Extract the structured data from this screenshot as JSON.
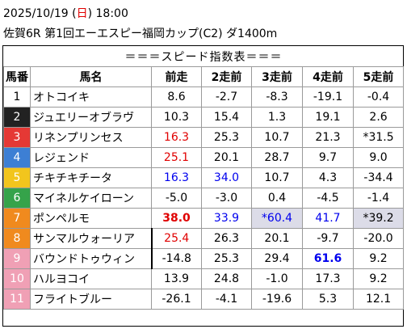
{
  "header": {
    "date_prefix": "2025/10/19 (",
    "weekday": "日",
    "date_suffix": ") 18:00",
    "race": "佐賀6R 第1回エーエスピー福岡カップ(C2) ダ1400m"
  },
  "table_caption": "＝＝＝スピード指数表＝＝＝",
  "columns": [
    "馬番",
    "馬名",
    "前走",
    "2走前",
    "3走前",
    "4走前",
    "5走前"
  ],
  "colors": {
    "waku": [
      "#ffffff",
      "#222222",
      "#e53935",
      "#3d7fd4",
      "#f2c51d",
      "#35a34a",
      "#f08a1e",
      "#f0a0b5"
    ],
    "red_text": "#e00000",
    "blue_text": "#0000ee",
    "highlight_bg": "#dcdce8"
  },
  "rows": [
    {
      "num": "1",
      "name": "オトコイキ",
      "v": [
        "8.6",
        "-2.7",
        "-8.3",
        "-19.1",
        "-0.4"
      ]
    },
    {
      "num": "2",
      "name": "ジュエリーオブラヴ",
      "v": [
        "10.3",
        "15.4",
        "1.3",
        "19.1",
        "2.6"
      ]
    },
    {
      "num": "3",
      "name": "リネンプリンセス",
      "v": [
        "16.3",
        "25.3",
        "10.7",
        "21.3",
        "*31.5"
      ]
    },
    {
      "num": "4",
      "name": "レジェンド",
      "v": [
        "25.1",
        "20.1",
        "28.7",
        "9.7",
        "9.0"
      ]
    },
    {
      "num": "5",
      "name": "チキチキチータ",
      "v": [
        "16.3",
        "34.0",
        "10.7",
        "4.3",
        "-34.4"
      ]
    },
    {
      "num": "6",
      "name": "マイネルケイローン",
      "v": [
        "-5.0",
        "-3.0",
        "0.4",
        "-4.5",
        "-1.4"
      ]
    },
    {
      "num": "7",
      "name": "ポンペルモ",
      "v": [
        "38.0",
        "33.9",
        "*60.4",
        "41.7",
        "*39.2"
      ]
    },
    {
      "num": "8",
      "name": "サンマルウォーリア",
      "v": [
        "25.4",
        "26.3",
        "20.1",
        "-9.7",
        "-20.0"
      ]
    },
    {
      "num": "9",
      "name": "バウンドトゥウィン",
      "v": [
        "-14.8",
        "25.3",
        "29.4",
        "61.6",
        "9.2"
      ]
    },
    {
      "num": "10",
      "name": "ハルヨコイ",
      "v": [
        "13.9",
        "24.8",
        "-1.0",
        "17.3",
        "9.2"
      ]
    },
    {
      "num": "11",
      "name": "フライトブルー",
      "v": [
        "-26.1",
        "-4.1",
        "-19.6",
        "5.3",
        "12.1"
      ]
    }
  ]
}
